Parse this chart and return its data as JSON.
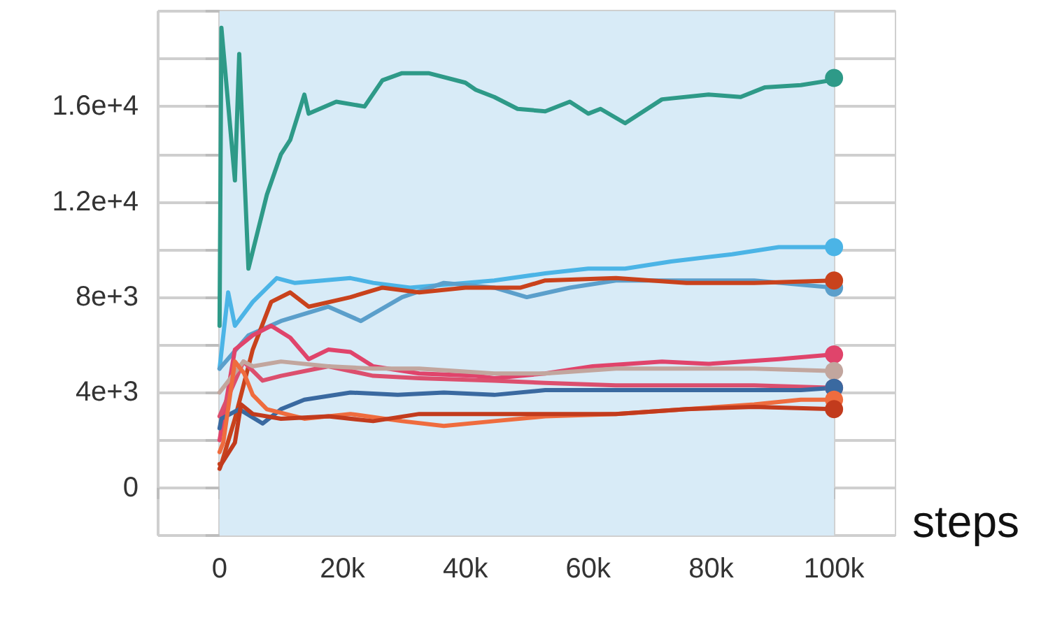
{
  "chart_data": {
    "type": "line",
    "xlabel": "steps",
    "xlim": [
      -10000,
      110000
    ],
    "xticks": [
      {
        "value": -10000,
        "label": null
      },
      0,
      {
        "value": 10000,
        "label": null
      },
      {
        "value": 20000,
        "label": "20k"
      },
      {
        "value": 30000,
        "label": null
      },
      {
        "value": 40000,
        "label": "40k"
      },
      {
        "value": 50000,
        "label": null
      },
      {
        "value": 60000,
        "label": "60k"
      },
      {
        "value": 70000,
        "label": null
      },
      {
        "value": 80000,
        "label": "80k"
      },
      {
        "value": 90000,
        "label": null
      },
      {
        "value": 100000,
        "label": "100k"
      }
    ],
    "ylim": [
      -2000,
      20000
    ],
    "yticks": [
      {
        "value": -2000,
        "label": null
      },
      0,
      {
        "value": 2000,
        "label": null
      },
      {
        "value": 4000,
        "label": "4e+3"
      },
      {
        "value": 6000,
        "label": null
      },
      {
        "value": 8000,
        "label": "8e+3"
      },
      {
        "value": 10000,
        "label": null
      },
      {
        "value": 12000,
        "label": "1.2e+4"
      },
      {
        "value": 14000,
        "label": null
      },
      {
        "value": 16000,
        "label": "1.6e+4"
      },
      {
        "value": 18000,
        "label": null
      },
      {
        "value": 20000,
        "label": null
      }
    ],
    "grid": true,
    "line_style": "solid",
    "bands": [
      {
        "axis": "x",
        "from": 0,
        "to": 100000,
        "color": "#d8ebf7"
      }
    ],
    "series": [
      {
        "color": "#2e9a88",
        "x": [
          0,
          300,
          2500,
          3200,
          4700,
          7700,
          10000,
          11500,
          13800,
          14500,
          19000,
          23600,
          26500,
          29700,
          34000,
          40000,
          41700,
          44700,
          48500,
          53000,
          57000,
          60000,
          62000,
          66000,
          72000,
          79600,
          84800,
          88700,
          94600,
          99500,
          100000
        ],
        "values": [
          6800,
          19300,
          12900,
          18200,
          9200,
          12300,
          14000,
          14600,
          16500,
          15700,
          16200,
          16000,
          17100,
          17400,
          17400,
          17000,
          16700,
          16400,
          15900,
          15800,
          16200,
          15700,
          15900,
          15300,
          16300,
          16500,
          16400,
          16800,
          16900,
          17100,
          17200
        ]
      },
      {
        "color": "#4bb4e6",
        "x": [
          0,
          1400,
          2500,
          5400,
          9300,
          12200,
          21300,
          25000,
          31000,
          40000,
          44700,
          53000,
          60000,
          66000,
          73500,
          83400,
          91000,
          100000
        ],
        "values": [
          5000,
          8200,
          6800,
          7800,
          8800,
          8600,
          8800,
          8600,
          8400,
          8600,
          8700,
          9000,
          9200,
          9200,
          9500,
          9800,
          10100,
          10100
        ]
      },
      {
        "color": "#5b9fcb",
        "x": [
          0,
          4700,
          10000,
          17700,
          23000,
          29700,
          36500,
          44700,
          50000,
          57000,
          64500,
          76000,
          87000,
          100000
        ],
        "values": [
          5000,
          6400,
          7000,
          7600,
          7000,
          8000,
          8600,
          8400,
          8000,
          8400,
          8700,
          8700,
          8700,
          8400
        ]
      },
      {
        "color": "#c9421c",
        "x": [
          0,
          300,
          2500,
          5400,
          8400,
          11500,
          14500,
          21300,
          26500,
          32500,
          40000,
          49000,
          53000,
          64500,
          76000,
          87000,
          100000
        ],
        "values": [
          1000,
          1000,
          2900,
          5800,
          7800,
          8200,
          7600,
          8000,
          8400,
          8200,
          8400,
          8400,
          8700,
          8800,
          8600,
          8600,
          8700
        ]
      },
      {
        "color": "#e0446b",
        "x": [
          0,
          600,
          2500,
          5400,
          8400,
          11500,
          14500,
          17700,
          21300,
          25000,
          32500,
          41700,
          44700,
          53000,
          60700,
          72000,
          79600,
          91000,
          100000
        ],
        "values": [
          2000,
          2900,
          5800,
          6400,
          6800,
          6300,
          5400,
          5800,
          5700,
          5100,
          4800,
          4700,
          4600,
          4800,
          5100,
          5300,
          5200,
          5400,
          5600
        ]
      },
      {
        "color": "#dc4f6e",
        "x": [
          0,
          3900,
          7000,
          10000,
          17700,
          25000,
          32500,
          44700,
          53000,
          64500,
          76000,
          87000,
          100000
        ],
        "values": [
          3000,
          5300,
          4500,
          4700,
          5100,
          4700,
          4600,
          4500,
          4400,
          4300,
          4300,
          4300,
          4200
        ]
      },
      {
        "color": "#c2a69e",
        "x": [
          0,
          3900,
          5400,
          10000,
          17700,
          25000,
          32500,
          44700,
          53000,
          64500,
          76000,
          87000,
          100000
        ],
        "values": [
          4000,
          5300,
          5100,
          5300,
          5100,
          5000,
          5000,
          4800,
          4800,
          5000,
          5000,
          5000,
          4900
        ]
      },
      {
        "color": "#3a69a0",
        "x": [
          0,
          300,
          3200,
          7000,
          10000,
          13800,
          21300,
          29000,
          36500,
          44700,
          53000,
          64500,
          79600,
          94600,
          100000
        ],
        "values": [
          2500,
          2900,
          3300,
          2700,
          3300,
          3700,
          4000,
          3900,
          4000,
          3900,
          4100,
          4100,
          4100,
          4100,
          4200
        ]
      },
      {
        "color": "#ef6c3e",
        "x": [
          0,
          600,
          2500,
          4000,
          5400,
          7700,
          13800,
          21300,
          29700,
          36500,
          44700,
          53000,
          64500,
          76000,
          87000,
          94600,
          100000
        ],
        "values": [
          1500,
          1900,
          5300,
          4800,
          3900,
          3300,
          2900,
          3100,
          2800,
          2600,
          2800,
          3000,
          3100,
          3300,
          3500,
          3700,
          3700
        ]
      },
      {
        "color": "#c23b1d",
        "x": [
          0,
          300,
          2500,
          3500,
          5400,
          10000,
          17700,
          25000,
          32500,
          44700,
          49000,
          64500,
          76000,
          87000,
          100000
        ],
        "values": [
          800,
          1000,
          1900,
          3500,
          3100,
          2900,
          3000,
          2800,
          3100,
          3100,
          3100,
          3100,
          3300,
          3400,
          3300
        ]
      }
    ]
  }
}
